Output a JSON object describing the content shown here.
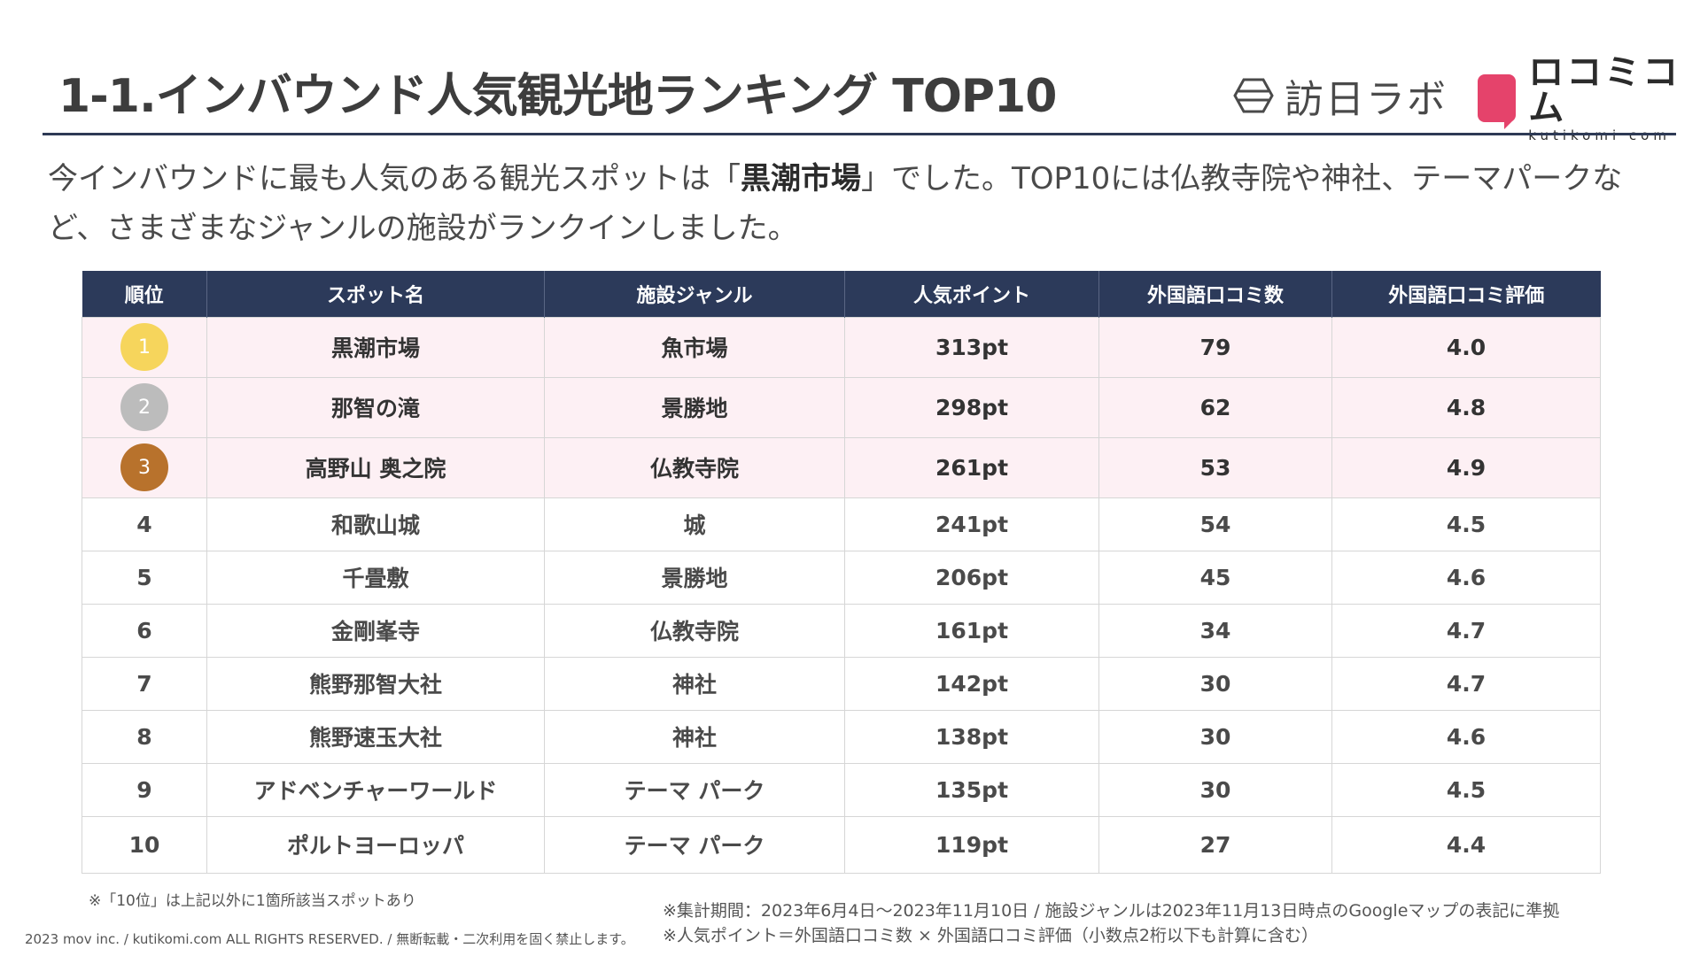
{
  "title": "1-1.インバウンド人気観光地ランキング TOP10",
  "logos": {
    "houjin_text": "訪日ラボ",
    "kuchikomi_jp": "ロコミコム",
    "kuchikomi_en": "kutikomi com",
    "accent": "#e5436b"
  },
  "intro": {
    "before": "今インバウンドに最も人気のある観光スポットは「",
    "highlight": "黒潮市場",
    "after": "」でした。TOP10には仏教寺院や神社、テーマパークなど、さまざまなジャンルの施設がランクインしました。"
  },
  "table": {
    "header_color": "#2c3a5a",
    "columns": [
      "順位",
      "スポット名",
      "施設ジャンル",
      "人気ポイント",
      "外国語口コミ数",
      "外国語口コミ評価"
    ],
    "rows": [
      {
        "rank": "1",
        "name": "黒潮市場",
        "genre": "魚市場",
        "points": "313pt",
        "reviews": "79",
        "rating": "4.0",
        "medal_color": "#f6d55c"
      },
      {
        "rank": "2",
        "name": "那智の滝",
        "genre": "景勝地",
        "points": "298pt",
        "reviews": "62",
        "rating": "4.8",
        "medal_color": "#bcbcbc"
      },
      {
        "rank": "3",
        "name": "高野山 奥之院",
        "genre": "仏教寺院",
        "points": "261pt",
        "reviews": "53",
        "rating": "4.9",
        "medal_color": "#b8722c"
      },
      {
        "rank": "4",
        "name": "和歌山城",
        "genre": "城",
        "points": "241pt",
        "reviews": "54",
        "rating": "4.5"
      },
      {
        "rank": "5",
        "name": "千畳敷",
        "genre": "景勝地",
        "points": "206pt",
        "reviews": "45",
        "rating": "4.6"
      },
      {
        "rank": "6",
        "name": "金剛峯寺",
        "genre": "仏教寺院",
        "points": "161pt",
        "reviews": "34",
        "rating": "4.7"
      },
      {
        "rank": "7",
        "name": "熊野那智大社",
        "genre": "神社",
        "points": "142pt",
        "reviews": "30",
        "rating": "4.7"
      },
      {
        "rank": "8",
        "name": "熊野速玉大社",
        "genre": "神社",
        "points": "138pt",
        "reviews": "30",
        "rating": "4.6"
      },
      {
        "rank": "9",
        "name": "アドベンチャーワールド",
        "genre": "テーマ パーク",
        "points": "135pt",
        "reviews": "30",
        "rating": "4.5"
      },
      {
        "rank": "10",
        "name": "ポルトヨーロッパ",
        "genre": "テーマ パーク",
        "points": "119pt",
        "reviews": "27",
        "rating": "4.4"
      }
    ]
  },
  "notes": {
    "rank10": "※「10位」は上記以外に1箇所該当スポットあり",
    "period": "※集計期間：2023年6月4日～2023年11月10日 / 施設ジャンルは2023年11月13日時点のGoogleマップの表記に準拠",
    "formula": "※人気ポイント＝外国語口コミ数 × 外国語口コミ評価（小数点2桁以下も計算に含む）"
  },
  "copyright": "2023 mov inc. / kutikomi.com ALL RIGHTS RESERVED. / 無断転載・二次利用を固く禁止します。"
}
